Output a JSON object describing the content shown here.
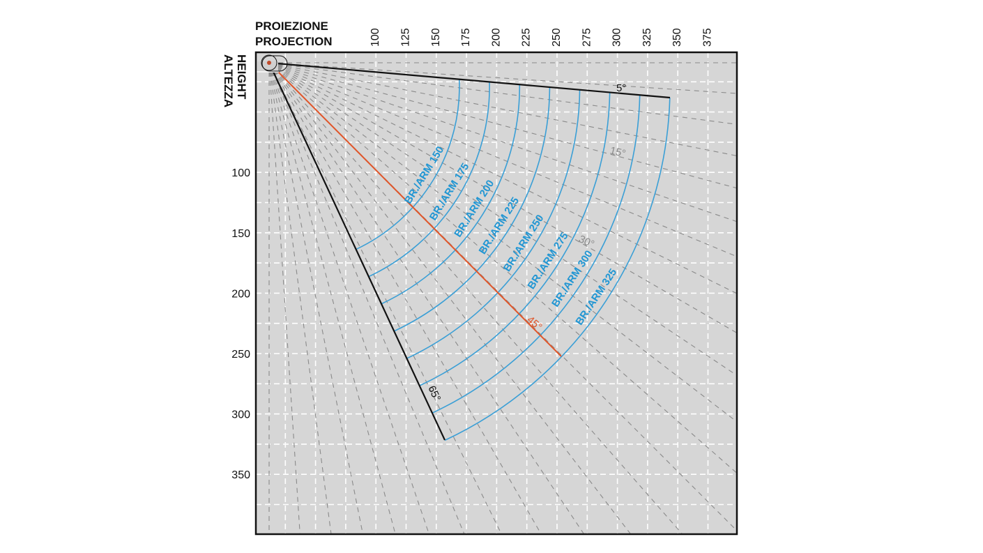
{
  "axes": {
    "x_title": [
      "PROIEZIONE",
      "PROJECTION"
    ],
    "y_title": [
      "ALTEZZA",
      "HEIGHT"
    ],
    "x_ticks": [
      "100",
      "125",
      "150",
      "175",
      "200",
      "225",
      "250",
      "275",
      "300",
      "325",
      "350",
      "375"
    ],
    "y_ticks": [
      "100",
      "150",
      "200",
      "250",
      "300",
      "350"
    ],
    "range": [
      0,
      400
    ],
    "grid_step": 25
  },
  "arms": [
    {
      "label": "BR./ARM 150",
      "value": 150
    },
    {
      "label": "BR./ARM 175",
      "value": 175
    },
    {
      "label": "BR./ARM 200",
      "value": 200
    },
    {
      "label": "BR./ARM 225",
      "value": 225
    },
    {
      "label": "BR./ARM 250",
      "value": 250
    },
    {
      "label": "BR./ARM 275",
      "value": 275
    },
    {
      "label": "BR./ARM 300",
      "value": 300
    },
    {
      "label": "BR./ARM 325",
      "value": 325
    }
  ],
  "angles": {
    "min": {
      "label": "5°",
      "value": 5
    },
    "ref1": {
      "label": "15°",
      "value": 15
    },
    "ref2": {
      "label": "30°",
      "value": 30
    },
    "optimal": {
      "label": "45°",
      "value": 45
    },
    "max": {
      "label": "65°",
      "value": 65
    }
  },
  "colors": {
    "background": "#d6d6d6",
    "arm_arcs": "#3a9fd6",
    "arm_text": "#2196d3",
    "optimal_line": "#e0562a",
    "limit_lines": "#111111",
    "reference_angles": "#8a8a8a",
    "grid": "#ffffff"
  }
}
